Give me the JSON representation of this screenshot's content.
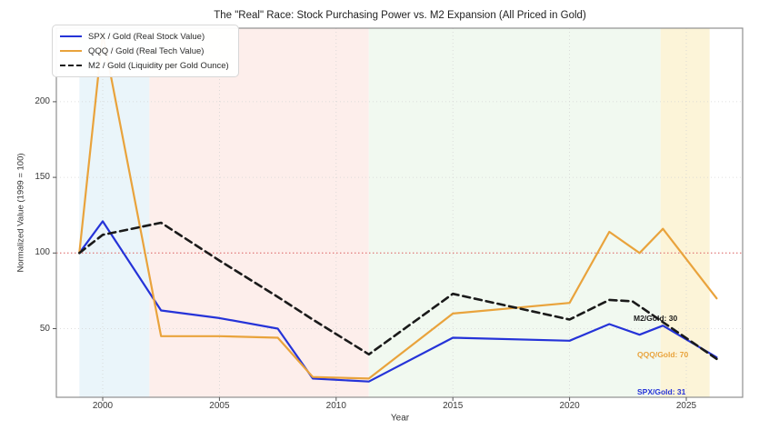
{
  "title": "The \"Real\" Race: Stock Purchasing Power vs. M2 Expansion (All Priced in Gold)",
  "axes": {
    "xlabel": "Year",
    "ylabel": "Normalized Value (1999 = 100)",
    "x_tick_labels": [
      "2000",
      "2005",
      "2010",
      "2015",
      "2020",
      "2025"
    ],
    "y_tick_labels": [
      "50",
      "100",
      "150",
      "200"
    ]
  },
  "legend": {
    "items": [
      {
        "label": "SPX / Gold (Real Stock Value)",
        "color": "#2533d8",
        "dash": "solid"
      },
      {
        "label": "QQQ / Gold (Real Tech Value)",
        "color": "#e9a33c",
        "dash": "solid"
      },
      {
        "label": "M2 / Gold (Liquidity per Gold Ounce)",
        "color": "#1a1a1a",
        "dash": "dashed"
      }
    ]
  },
  "annotations": [
    {
      "text": "M2/Gold: 30",
      "color": "#1a1a1a"
    },
    {
      "text": "QQQ/Gold: 70",
      "color": "#e9a33c"
    },
    {
      "text": "SPX/Gold: 31",
      "color": "#2533d8"
    }
  ],
  "chart_data": {
    "type": "line",
    "title": "The \"Real\" Race: Stock Purchasing Power vs. M2 Expansion (All Priced in Gold)",
    "xlabel": "Year",
    "ylabel": "Normalized Value (1999 = 100)",
    "xlim": [
      1998,
      2027.4
    ],
    "ylim": [
      4,
      249
    ],
    "x_ticks": [
      2000,
      2005,
      2010,
      2015,
      2020,
      2025
    ],
    "y_ticks": [
      50,
      100,
      150,
      200
    ],
    "grid": true,
    "legend_position": "upper left",
    "reference_line": {
      "y": 100,
      "color": "#e06060",
      "style": "dotted"
    },
    "background_bands": [
      {
        "from": 1999,
        "to": 2002,
        "color": "#eaf5fa"
      },
      {
        "from": 2002,
        "to": 2011.4,
        "color": "#fdeeeb"
      },
      {
        "from": 2011.4,
        "to": 2023.9,
        "color": "#f1f9f0"
      },
      {
        "from": 2023.9,
        "to": 2026,
        "color": "#fcf4d8"
      }
    ],
    "series": [
      {
        "name": "SPX / Gold (Real Stock Value)",
        "color": "#2533d8",
        "dash": "solid",
        "points": [
          [
            1999,
            100
          ],
          [
            2000,
            121
          ],
          [
            2002.5,
            62
          ],
          [
            2005,
            57
          ],
          [
            2007.5,
            50
          ],
          [
            2009,
            17
          ],
          [
            2011.4,
            15
          ],
          [
            2015,
            44
          ],
          [
            2020,
            42
          ],
          [
            2021.7,
            53
          ],
          [
            2023,
            46
          ],
          [
            2024,
            52
          ],
          [
            2026.3,
            31
          ]
        ]
      },
      {
        "name": "QQQ / Gold (Real Tech Value)",
        "color": "#e9a33c",
        "dash": "solid",
        "note": "2000 peak hidden behind legend, value estimated ~245",
        "points": [
          [
            1999,
            100
          ],
          [
            2000,
            245
          ],
          [
            2002.5,
            45
          ],
          [
            2005,
            45
          ],
          [
            2007.5,
            44
          ],
          [
            2009,
            18
          ],
          [
            2011.4,
            17
          ],
          [
            2015,
            60
          ],
          [
            2020,
            67
          ],
          [
            2021.7,
            114
          ],
          [
            2023,
            100
          ],
          [
            2024,
            116
          ],
          [
            2026.3,
            70
          ]
        ]
      },
      {
        "name": "M2 / Gold (Liquidity per Gold Ounce)",
        "color": "#1a1a1a",
        "dash": "dashed",
        "points": [
          [
            1999,
            100
          ],
          [
            2000,
            112
          ],
          [
            2002.5,
            120
          ],
          [
            2005,
            95
          ],
          [
            2007.5,
            71
          ],
          [
            2009,
            56
          ],
          [
            2011.4,
            33
          ],
          [
            2015,
            73
          ],
          [
            2020,
            56
          ],
          [
            2021.7,
            69
          ],
          [
            2022.7,
            68
          ],
          [
            2026.3,
            30
          ]
        ]
      }
    ],
    "end_value_labels": [
      "M2/Gold: 30",
      "QQQ/Gold: 70",
      "SPX/Gold: 31"
    ]
  }
}
